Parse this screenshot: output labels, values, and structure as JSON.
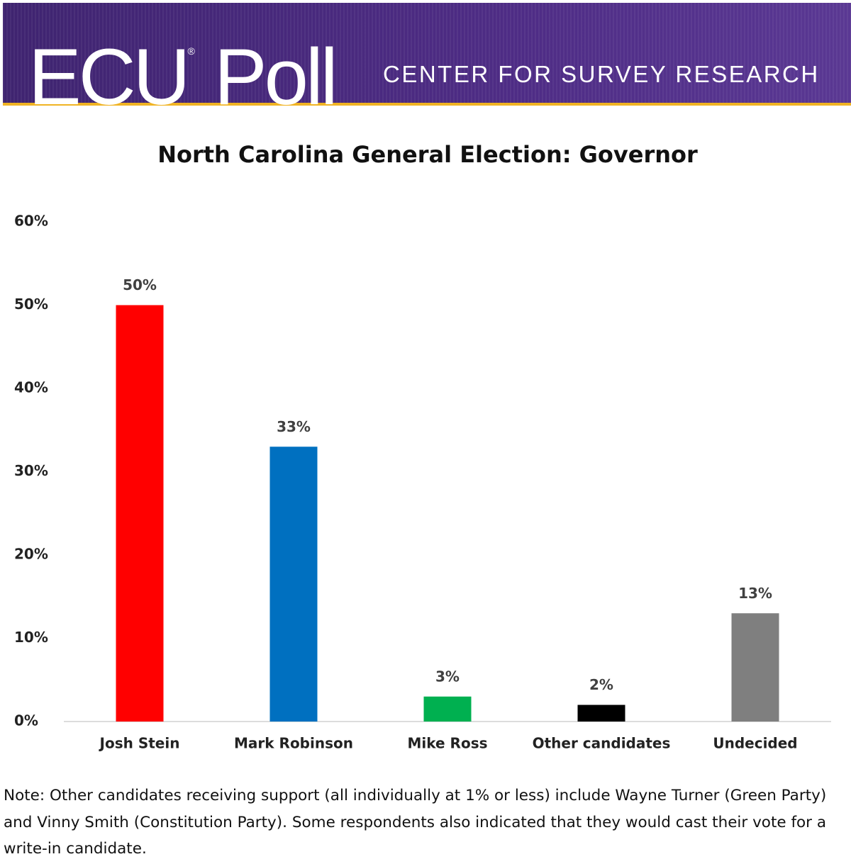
{
  "header": {
    "logo": "ECU",
    "registered": "®",
    "logo_word": "Poll",
    "subtitle": "CENTER FOR SURVEY RESEARCH"
  },
  "chart_data": {
    "type": "bar",
    "title": "North Carolina General Election: Governor",
    "categories": [
      "Josh Stein",
      "Mark Robinson",
      "Mike Ross",
      "Other candidates",
      "Undecided"
    ],
    "values": [
      50,
      33,
      3,
      2,
      13
    ],
    "value_labels": [
      "50%",
      "33%",
      "3%",
      "2%",
      "13%"
    ],
    "colors": [
      "#ff0000",
      "#0070c0",
      "#00b050",
      "#000000",
      "#7f7f7f"
    ],
    "ylim": [
      0,
      60
    ],
    "yticks": [
      {
        "value": 0,
        "label": "0%"
      },
      {
        "value": 10,
        "label": "10%"
      },
      {
        "value": 20,
        "label": "20%"
      },
      {
        "value": 30,
        "label": "30%"
      },
      {
        "value": 40,
        "label": "40%"
      },
      {
        "value": 50,
        "label": "50%"
      },
      {
        "value": 60,
        "label": "60%"
      }
    ],
    "grid": false
  },
  "note": "Note: Other candidates receiving support (all individually at 1% or less) include Wayne Turner (Green Party) and Vinny Smith (Constitution Party). Some respondents also indicated that they would cast their vote for a write-in candidate."
}
